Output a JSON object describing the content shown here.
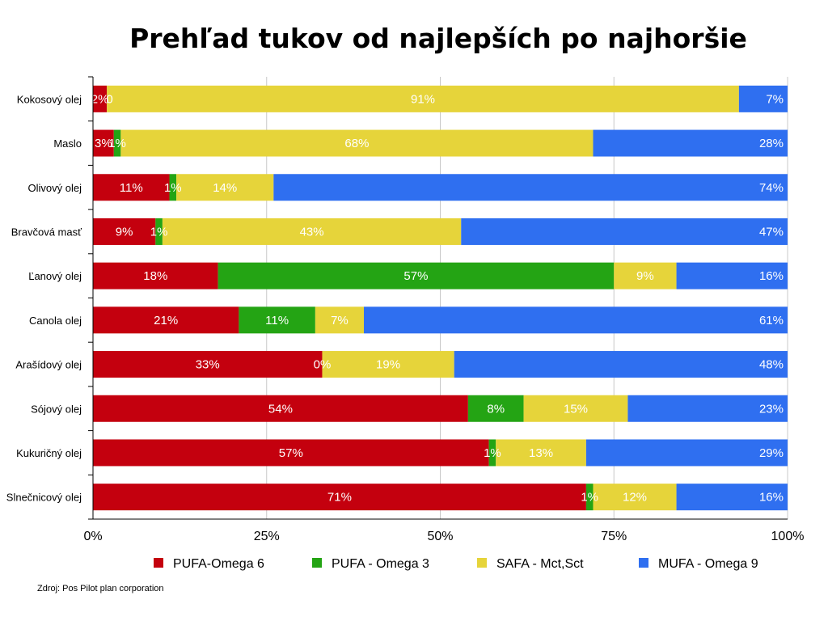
{
  "chart_data": {
    "type": "bar",
    "orientation": "horizontal",
    "stacked": true,
    "title": "Prehľad tukov od najlepších po najhoršie",
    "categories": [
      "Kokosový olej",
      "Maslo",
      "Olivový olej",
      "Bravčová masť",
      "Ľanový olej",
      "Canola olej",
      "Arašídový olej",
      "Sójový olej",
      "Kukuričný olej",
      "Slnečnicový olej"
    ],
    "series": [
      {
        "name": "PUFA-Omega 6",
        "color": "#c4000e",
        "values": [
          2,
          3,
          11,
          9,
          18,
          21,
          33,
          54,
          57,
          71
        ],
        "labels": [
          "2%",
          "3%",
          "11%",
          "9%",
          "18%",
          "21%",
          "33%",
          "54%",
          "57%",
          "71%"
        ]
      },
      {
        "name": "PUFA - Omega 3",
        "color": "#24a414",
        "values": [
          0,
          1,
          1,
          1,
          57,
          11,
          0,
          8,
          1,
          1
        ],
        "labels": [
          "0",
          "1%",
          "1%",
          "1%",
          "57%",
          "11%",
          "0%",
          "8%",
          "1%",
          "1%"
        ]
      },
      {
        "name": "SAFA - Mct,Sct",
        "color": "#e6d43a",
        "values": [
          91,
          68,
          14,
          43,
          9,
          7,
          19,
          15,
          13,
          12
        ],
        "labels": [
          "91%",
          "68%",
          "14%",
          "43%",
          "9%",
          "7%",
          "19%",
          "15%",
          "13%",
          "12%"
        ]
      },
      {
        "name": "MUFA - Omega 9",
        "color": "#2f6ff0",
        "values": [
          7,
          28,
          74,
          47,
          16,
          61,
          48,
          23,
          29,
          16
        ],
        "labels": [
          "7%",
          "28%",
          "74%",
          "47%",
          "16%",
          "61%",
          "48%",
          "23%",
          "29%",
          "16%"
        ]
      }
    ],
    "xlim": [
      0,
      100
    ],
    "xticks": [
      0,
      25,
      50,
      75,
      100
    ],
    "xtick_labels": [
      "0%",
      "25%",
      "50%",
      "75%",
      "100%"
    ],
    "grid": true,
    "legend_position": "bottom"
  },
  "footer": {
    "source": "Zdroj: Pos Pilot plan corporation"
  }
}
